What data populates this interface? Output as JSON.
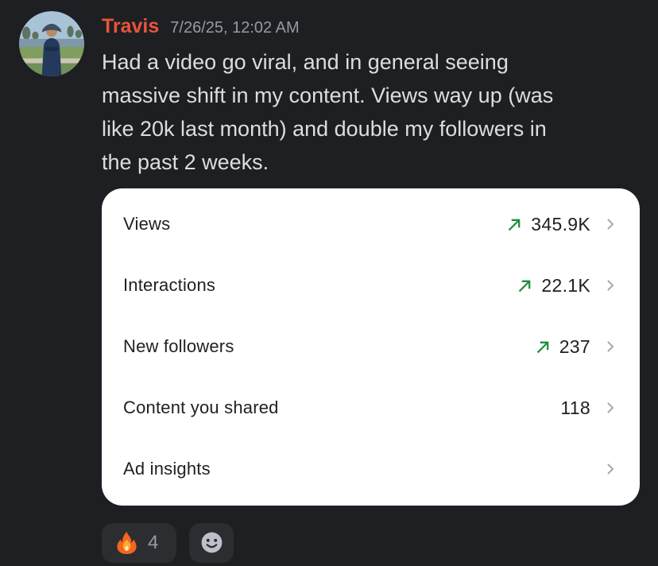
{
  "colors": {
    "background": "#1e1f22",
    "author": "#e8543c",
    "timestamp": "#949ba4",
    "message_text": "#dbdee1",
    "card_background": "#ffffff",
    "card_text": "#202124",
    "trend_green": "#1e8e3e",
    "chevron_gray": "#9aa0a6",
    "reaction_pill": "#2b2d31",
    "reaction_count": "#949ba4"
  },
  "message": {
    "author": "Travis",
    "timestamp": "7/26/25, 12:02 AM",
    "lines": [
      "Had a video go viral, and in general seeing",
      "massive shift in my content. Views way up (was",
      "like 20k last month) and double my followers in",
      "the past 2 weeks."
    ]
  },
  "avatar": {
    "description": "person wearing bucket hat and navy hoodie standing on grass by water with palm trees"
  },
  "insights_card": {
    "rows": [
      {
        "label": "Views",
        "value": "345.9K",
        "trend_up": true,
        "chevron": true
      },
      {
        "label": "Interactions",
        "value": "22.1K",
        "trend_up": true,
        "chevron": true
      },
      {
        "label": "New followers",
        "value": "237",
        "trend_up": true,
        "chevron": true
      },
      {
        "label": "Content you shared",
        "value": "118",
        "trend_up": false,
        "chevron": true
      },
      {
        "label": "Ad insights",
        "value": "",
        "trend_up": false,
        "chevron": true
      }
    ],
    "trend_icon": "up-right-arrow",
    "row_icon": "chevron-right"
  },
  "reactions": {
    "items": [
      {
        "emoji": "fire",
        "count": "4"
      }
    ],
    "add_button_icon": "smiley-face"
  }
}
